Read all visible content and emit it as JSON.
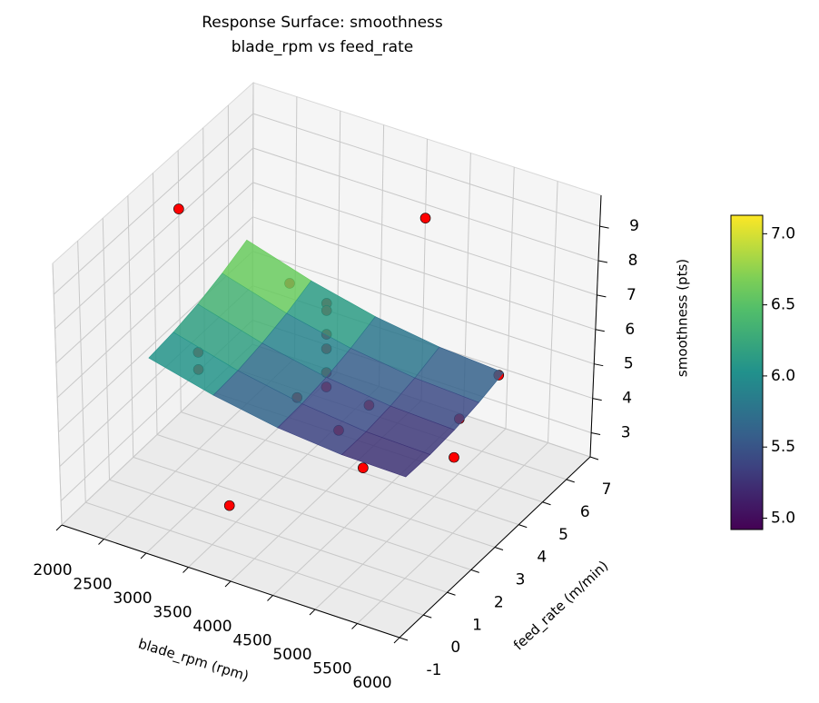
{
  "chart_data": {
    "type": "surface3d",
    "title": [
      "Response Surface: smoothness",
      "blade_rpm vs feed_rate"
    ],
    "xlabel": "blade_rpm (rpm)",
    "ylabel": "feed_rate (m/min)",
    "zlabel": "smoothness (pts)",
    "xlim": [
      2000,
      6000
    ],
    "ylim": [
      -1,
      7
    ],
    "zlim": [
      2.3,
      9.9
    ],
    "xticks": [
      2000,
      2500,
      3000,
      3500,
      4000,
      4500,
      5000,
      5500,
      6000
    ],
    "yticks": [
      -1,
      0,
      1,
      2,
      3,
      4,
      5,
      6,
      7
    ],
    "zticks": [
      3,
      4,
      5,
      6,
      7,
      8,
      9
    ],
    "colormap": "viridis",
    "surface": {
      "x": [
        2500,
        3250,
        4000,
        4750,
        5500
      ],
      "y": [
        1,
        2,
        3,
        4,
        5
      ],
      "z": [
        [
          6.25,
          5.78,
          5.45,
          5.28,
          5.25
        ],
        [
          6.34,
          5.84,
          5.49,
          5.29,
          5.24
        ],
        [
          6.5,
          5.98,
          5.6,
          5.38,
          5.3
        ],
        [
          6.74,
          6.19,
          5.79,
          5.54,
          5.44
        ],
        [
          7.05,
          6.48,
          6.05,
          5.78,
          5.65
        ]
      ]
    },
    "points": {
      "color": "#ff0000",
      "x": [
        2000,
        4000,
        6000,
        5000,
        5500,
        5000,
        4000,
        2500,
        2500,
        3000,
        4000,
        4000,
        4000,
        4000,
        4000,
        4000,
        4000,
        4600,
        4500
      ],
      "y": [
        4,
        7,
        3,
        5,
        3,
        1,
        -1,
        3,
        3,
        5,
        3,
        3,
        3,
        3,
        3,
        3,
        1.8,
        1.4,
        3
      ],
      "z": [
        8.2,
        7.6,
        7.3,
        3.9,
        4.5,
        5.1,
        4.5,
        5.1,
        4.6,
        6.2,
        7.75,
        7.54,
        6.85,
        6.43,
        5.74,
        5.32,
        5.8,
        5.6,
        5.2
      ]
    },
    "colorbar": {
      "lim": [
        4.92,
        7.13
      ],
      "ticks": [
        {
          "value": 5,
          "label": "5.0"
        },
        5.5,
        {
          "value": 6,
          "label": "6.0"
        },
        6.5,
        {
          "value": 7,
          "label": "7.0"
        }
      ]
    }
  }
}
